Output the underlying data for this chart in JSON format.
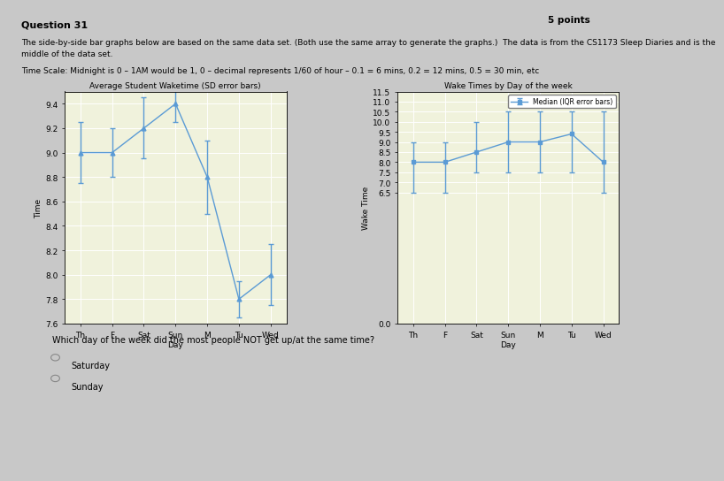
{
  "days": [
    "Th",
    "F",
    "Sat",
    "Sun",
    "M",
    "Tu",
    "Wed"
  ],
  "chart1": {
    "title": "Average Student Waketime (SD error bars)",
    "ylabel": "Time",
    "xlabel": "Day",
    "mean": [
      9.0,
      9.0,
      9.2,
      9.4,
      8.8,
      7.8,
      8.0
    ],
    "sd": [
      0.25,
      0.2,
      0.25,
      0.15,
      0.3,
      0.15,
      0.25
    ],
    "ylim": [
      7.6,
      9.5
    ],
    "yticks": [
      7.6,
      7.8,
      8.0,
      8.2,
      8.4,
      8.6,
      8.8,
      9.0,
      9.2,
      9.4
    ]
  },
  "chart2": {
    "title": "Wake Times by Day of the week",
    "ylabel": "Wake Time",
    "xlabel": "Day",
    "legend": "Median (IQR error bars)",
    "median": [
      8.0,
      8.0,
      8.5,
      9.0,
      9.0,
      9.4,
      8.0
    ],
    "iqr_low": [
      6.5,
      6.5,
      7.5,
      7.5,
      7.5,
      7.5,
      6.5
    ],
    "iqr_high": [
      9.0,
      9.0,
      10.0,
      10.5,
      10.5,
      10.5,
      10.5
    ],
    "ylim": [
      0.0,
      11.5
    ],
    "yticks": [
      0.0,
      6.5,
      7.0,
      7.5,
      8.0,
      8.5,
      9.0,
      9.5,
      10.0,
      10.5,
      11.0,
      11.5
    ]
  },
  "line_color": "#5b9bd5",
  "chart_bg": "#f0f2dc",
  "page_bg": "#ffffff",
  "outer_bg": "#c8c8c8",
  "taskbar_bg": "#1a1a2e",
  "title_text": "Question 31",
  "points_text": "5 points",
  "description_line1": "The side-by-side bar graphs below are based on the same data set. (Both use the same array to generate the graphs.)  The data is from the CS1173 Sleep Diaries and is the",
  "description_line2": "middle of the data set.",
  "timescale_text": "Time Scale: Midnight is 0 – 1AM would be 1, 0 – decimal represents 1/60 of hour – 0.1 = 6 mins, 0.2 = 12 mins, 0.5 = 30 min, etc",
  "question_text": "Which day of the week did the most people NOT get up/at the same time?",
  "answers": [
    "Saturday",
    "Sunday"
  ]
}
